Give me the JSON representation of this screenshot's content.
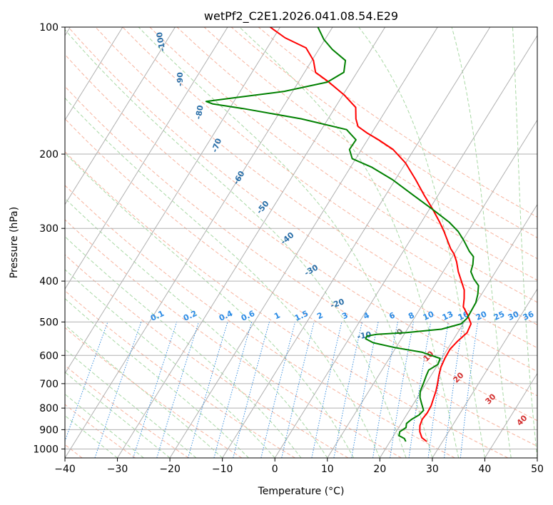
{
  "chart_data": {
    "type": "line",
    "title": "wetPf2_C2E1.2026.041.08.54.E29",
    "xlabel": "Temperature (°C)",
    "ylabel": "Pressure (hPa)",
    "xlim": [
      -40,
      50
    ],
    "ylim": [
      1050,
      100
    ],
    "yscale": "log",
    "x_ticks": [
      -40,
      -30,
      -20,
      -10,
      0,
      10,
      20,
      30,
      40,
      50
    ],
    "x_tick_labels": [
      "−40",
      "−30",
      "−20",
      "−10",
      "0",
      "10",
      "20",
      "30",
      "40",
      "50"
    ],
    "y_ticks": [
      100,
      200,
      300,
      400,
      500,
      600,
      700,
      800,
      900,
      1000
    ],
    "y_tick_labels": [
      "100",
      "200",
      "300",
      "400",
      "500",
      "600",
      "700",
      "800",
      "900",
      "1000"
    ],
    "grid": true,
    "series": [
      {
        "name": "temperature",
        "color": "#ff0000",
        "points": [
          [
            27.0,
            960
          ],
          [
            25.6,
            940
          ],
          [
            24.5,
            910
          ],
          [
            23.8,
            880
          ],
          [
            23.5,
            850
          ],
          [
            23.7,
            820
          ],
          [
            23.6,
            790
          ],
          [
            23.2,
            760
          ],
          [
            22.8,
            730
          ],
          [
            22.2,
            700
          ],
          [
            21.5,
            670
          ],
          [
            20.9,
            640
          ],
          [
            20.6,
            610
          ],
          [
            20.5,
            580
          ],
          [
            21.0,
            555
          ],
          [
            21.8,
            530
          ],
          [
            21.5,
            505
          ],
          [
            19.7,
            480
          ],
          [
            18.0,
            460
          ],
          [
            17.2,
            440
          ],
          [
            16.2,
            420
          ],
          [
            14.6,
            400
          ],
          [
            12.9,
            380
          ],
          [
            11.4,
            360
          ],
          [
            10.0,
            345
          ],
          [
            8.7,
            335
          ],
          [
            7.1,
            320
          ],
          [
            5.4,
            305
          ],
          [
            3.5,
            290
          ],
          [
            0.6,
            270
          ],
          [
            -2.7,
            250
          ],
          [
            -6.1,
            230
          ],
          [
            -10.0,
            210
          ],
          [
            -14.0,
            195
          ],
          [
            -17.9,
            185
          ],
          [
            -21.0,
            178
          ],
          [
            -23.4,
            172
          ],
          [
            -24.7,
            165
          ],
          [
            -26.1,
            155
          ],
          [
            -29.7,
            145
          ],
          [
            -34.2,
            135
          ],
          [
            -37.9,
            128
          ],
          [
            -39.7,
            120
          ],
          [
            -42.6,
            112
          ],
          [
            -47.8,
            106
          ],
          [
            -51.9,
            100
          ]
        ]
      },
      {
        "name": "dewpoint",
        "color": "#008000",
        "points": [
          [
            23.0,
            960
          ],
          [
            22.4,
            945
          ],
          [
            21.0,
            930
          ],
          [
            20.7,
            910
          ],
          [
            21.4,
            890
          ],
          [
            21.0,
            870
          ],
          [
            21.5,
            850
          ],
          [
            22.4,
            830
          ],
          [
            22.7,
            810
          ],
          [
            21.5,
            780
          ],
          [
            20.5,
            755
          ],
          [
            19.8,
            730
          ],
          [
            19.5,
            700
          ],
          [
            19.1,
            670
          ],
          [
            18.9,
            650
          ],
          [
            20.0,
            630
          ],
          [
            19.7,
            610
          ],
          [
            15.6,
            590
          ],
          [
            9.8,
            575
          ],
          [
            5.1,
            560
          ],
          [
            3.2,
            548
          ],
          [
            3.1,
            540
          ],
          [
            4.7,
            535
          ],
          [
            10.1,
            530
          ],
          [
            16.5,
            520
          ],
          [
            19.6,
            505
          ],
          [
            20.1,
            490
          ],
          [
            20.0,
            470
          ],
          [
            19.9,
            450
          ],
          [
            19.3,
            430
          ],
          [
            18.4,
            410
          ],
          [
            16.7,
            395
          ],
          [
            15.3,
            380
          ],
          [
            14.8,
            365
          ],
          [
            14.0,
            350
          ],
          [
            12.6,
            340
          ],
          [
            10.2,
            320
          ],
          [
            8.1,
            305
          ],
          [
            5.3,
            290
          ],
          [
            0.5,
            270
          ],
          [
            -4.8,
            250
          ],
          [
            -10.5,
            230
          ],
          [
            -15.9,
            215
          ],
          [
            -20.7,
            205
          ],
          [
            -22.3,
            195
          ],
          [
            -22.2,
            185
          ],
          [
            -25.2,
            175
          ],
          [
            -35.1,
            165
          ],
          [
            -47.4,
            156
          ],
          [
            -53.8,
            152
          ],
          [
            -55.3,
            150
          ],
          [
            -50.3,
            147
          ],
          [
            -41.6,
            142
          ],
          [
            -34.5,
            135
          ],
          [
            -32.5,
            128
          ],
          [
            -33.6,
            120
          ],
          [
            -37.4,
            113
          ],
          [
            -40.2,
            107
          ],
          [
            -42.8,
            100
          ]
        ]
      }
    ],
    "dry_adiabat_labels": [
      "-100",
      "-90",
      "-80",
      "-70",
      "-60",
      "-50",
      "-40",
      "-30",
      "-20",
      "-10"
    ],
    "mixing_ratio_labels": [
      "0.1",
      "0.2",
      "0.4",
      "0.6",
      "1",
      "1.5",
      "2",
      "3",
      "4",
      "6",
      "8",
      "10",
      "13",
      "16",
      "20",
      "25",
      "30",
      "36"
    ],
    "moist_adiabat_labels": [
      "0",
      "10",
      "20",
      "30",
      "40"
    ]
  }
}
